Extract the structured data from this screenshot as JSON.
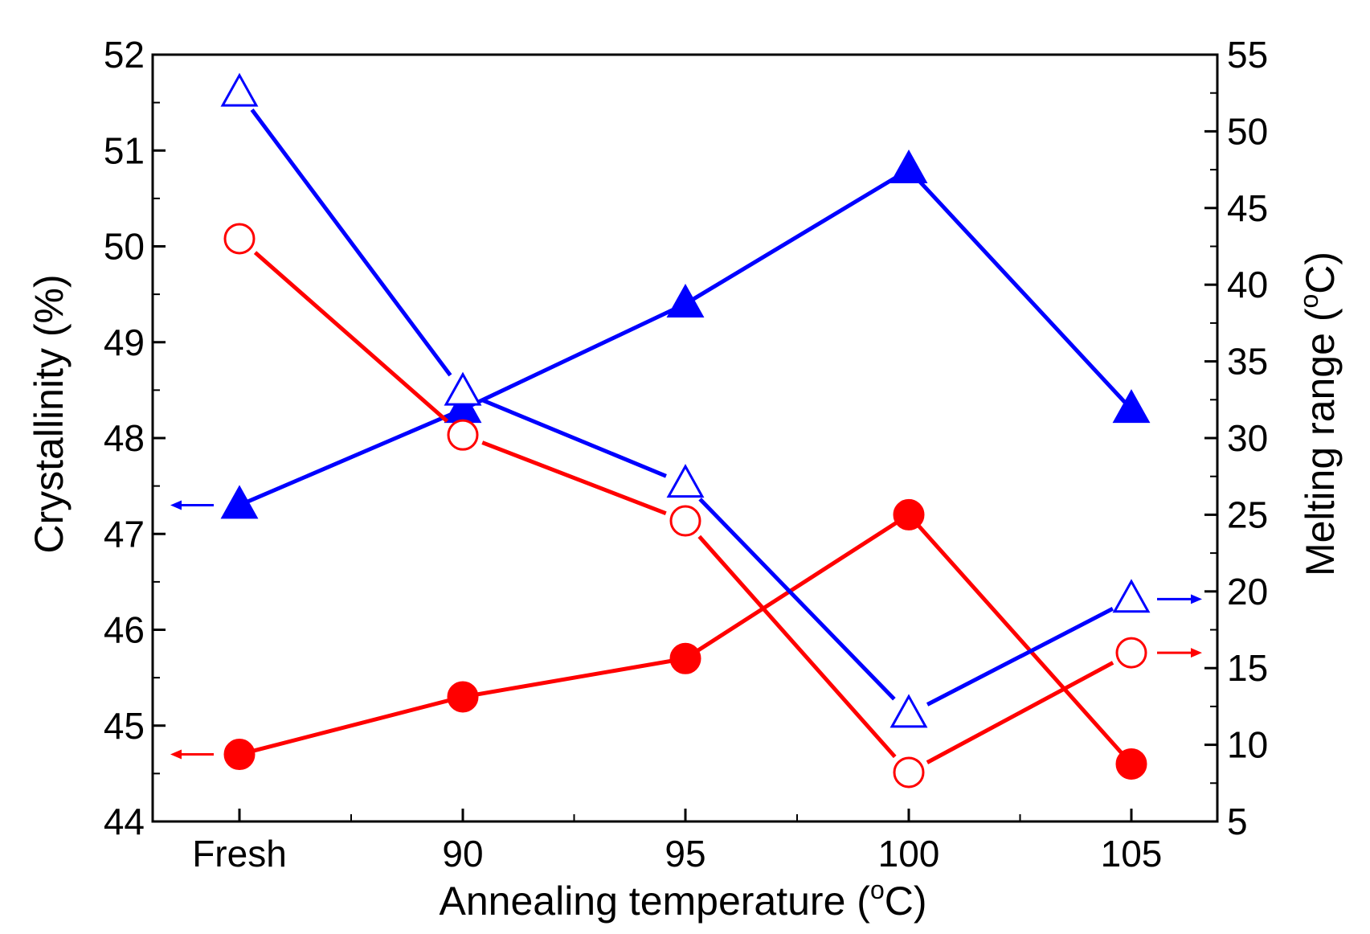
{
  "chart_data": {
    "type": "line",
    "categories": [
      "Fresh",
      "90",
      "95",
      "100",
      "105"
    ],
    "xlabel": "Annealing temperature (",
    "xlabel_sup": "o",
    "xlabel_end": "C)",
    "y_left": {
      "label": "Crystallinity (%)",
      "range": [
        44,
        52
      ],
      "ticks": [
        "44",
        "45",
        "46",
        "47",
        "48",
        "49",
        "50",
        "51",
        "52"
      ]
    },
    "y_right": {
      "label": "Melting range (",
      "label_sup": "o",
      "label_end": "C)",
      "range": [
        5,
        55
      ],
      "ticks": [
        "5",
        "10",
        "15",
        "20",
        "25",
        "30",
        "35",
        "40",
        "45",
        "50",
        "55"
      ]
    },
    "series": [
      {
        "name": "Crystallinity (blue)",
        "axis": "left",
        "color": "#0000ff",
        "marker": "triangle",
        "filled": true,
        "values": [
          47.3,
          48.3,
          49.4,
          50.8,
          48.3
        ]
      },
      {
        "name": "Crystallinity (red)",
        "axis": "left",
        "color": "#ff0000",
        "marker": "circle",
        "filled": true,
        "values": [
          44.7,
          45.3,
          45.7,
          47.2,
          44.6
        ]
      },
      {
        "name": "Melting range (blue)",
        "axis": "right",
        "color": "#0000ff",
        "marker": "triangle",
        "filled": false,
        "values": [
          52.5,
          33.0,
          27.0,
          12.0,
          19.5
        ]
      },
      {
        "name": "Melting range (red)",
        "axis": "right",
        "color": "#ff0000",
        "marker": "circle",
        "filled": false,
        "values": [
          43.0,
          30.2,
          24.6,
          8.2,
          16.0
        ]
      }
    ],
    "axis_arrows": [
      {
        "series": "Crystallinity (blue)",
        "direction": "left",
        "color": "#0000ff"
      },
      {
        "series": "Crystallinity (red)",
        "direction": "left",
        "color": "#ff0000"
      },
      {
        "series": "Melting range (blue)",
        "direction": "right",
        "color": "#0000ff"
      },
      {
        "series": "Melting range (red)",
        "direction": "right",
        "color": "#ff0000"
      }
    ]
  }
}
